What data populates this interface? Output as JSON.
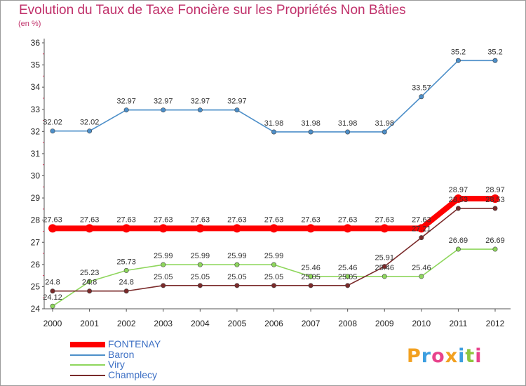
{
  "chart_data": {
    "type": "line",
    "title": "Evolution du Taux de Taxe Foncière sur les Propriétés Non Bâties",
    "ylabel": "(en %)",
    "xlabel": "",
    "ylim": [
      24,
      36
    ],
    "yticks": [
      24,
      25,
      26,
      27,
      28,
      29,
      30,
      31,
      32,
      33,
      34,
      35,
      36
    ],
    "x": [
      "2000",
      "2001",
      "2002",
      "2003",
      "2004",
      "2005",
      "2006",
      "2007",
      "2008",
      "2009",
      "2010",
      "2011",
      "2012"
    ],
    "grid": false,
    "legend_position": "bottom-left",
    "series": [
      {
        "name": "FONTENAY",
        "color": "#ff0000",
        "values": [
          27.63,
          27.63,
          27.63,
          27.63,
          27.63,
          27.63,
          27.63,
          27.63,
          27.63,
          27.63,
          27.63,
          28.97,
          28.97
        ],
        "labels": [
          "27.63",
          "27.63",
          "27.63",
          "27.63",
          "27.63",
          "27.63",
          "27.63",
          "27.63",
          "27.63",
          "27.63",
          "27.63",
          "28.97",
          "28.97"
        ]
      },
      {
        "name": "Baron",
        "color": "#4d8fc9",
        "values": [
          32.02,
          32.02,
          32.97,
          32.97,
          32.97,
          32.97,
          31.98,
          31.98,
          31.98,
          31.98,
          33.57,
          35.2,
          35.2
        ],
        "labels": [
          "32.02",
          "32.02",
          "32.97",
          "32.97",
          "32.97",
          "32.97",
          "31.98",
          "31.98",
          "31.98",
          "31.98",
          "33.57",
          "35.2",
          "35.2"
        ]
      },
      {
        "name": "Viry",
        "color": "#8ed65c",
        "values": [
          24.12,
          25.23,
          25.73,
          25.99,
          25.99,
          25.99,
          25.99,
          25.46,
          25.46,
          25.46,
          25.46,
          26.69,
          26.69
        ],
        "labels": [
          "24.12",
          "25.23",
          "25.73",
          "25.99",
          "25.99",
          "25.99",
          "25.99",
          "25.46",
          "25.46",
          "25.46",
          "25.46",
          "26.69",
          "26.69"
        ]
      },
      {
        "name": "Champlecy",
        "color": "#7a2a2a",
        "values": [
          24.8,
          24.8,
          24.8,
          25.05,
          25.05,
          25.05,
          25.05,
          25.05,
          25.05,
          25.91,
          27.21,
          28.53,
          28.53
        ],
        "labels": [
          "24.8",
          "24.8",
          "24.8",
          "25.05",
          "25.05",
          "25.05",
          "25.05",
          "25.05",
          "25.05",
          "25.91",
          "27.21",
          "28.53",
          "28.53"
        ]
      }
    ]
  },
  "logo": {
    "letters": [
      "P",
      "r",
      "o",
      "x",
      "i",
      "t",
      "i"
    ],
    "colors": [
      "#f2a020",
      "#3c9ee0",
      "#e8428c",
      "#f2a020",
      "#3c9ee0",
      "#8dc63f",
      "#e8428c"
    ]
  }
}
